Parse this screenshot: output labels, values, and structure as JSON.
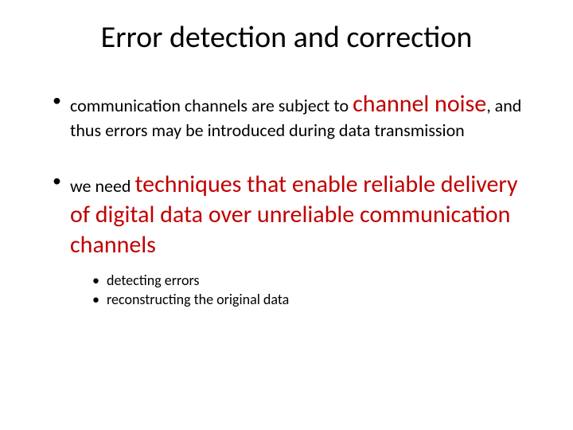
{
  "colors": {
    "background": "#ffffff",
    "text": "#000000",
    "accent": "#c00000"
  },
  "typography": {
    "title_fontsize": 38,
    "body_fontsize": 22,
    "emphasis_fontsize": 30,
    "sub_fontsize": 18,
    "font_family": "Calibri"
  },
  "title": "Error detection and correction",
  "bullets": [
    {
      "pre": "communication channels are subject to ",
      "accent": "channel noise",
      "post": ", and thus errors may be introduced during data transmission"
    },
    {
      "pre": "we need ",
      "accent": "techniques that enable reliable delivery of digital data over unreliable communication channels",
      "post": "",
      "sub": [
        "detecting errors",
        "reconstructing the original data"
      ]
    }
  ]
}
